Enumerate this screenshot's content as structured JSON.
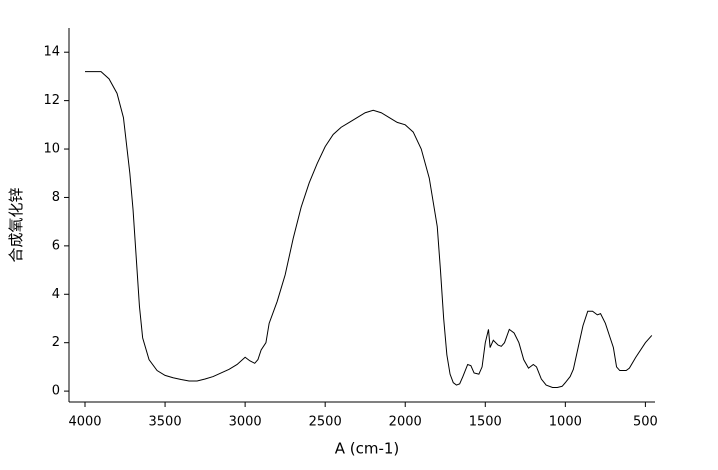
{
  "chart_data": {
    "type": "line",
    "x_label": "A (cm-1)",
    "y_label": "合成氧化锌",
    "x": [
      4000,
      3950,
      3900,
      3850,
      3800,
      3760,
      3720,
      3700,
      3680,
      3660,
      3640,
      3600,
      3550,
      3500,
      3450,
      3400,
      3350,
      3300,
      3250,
      3200,
      3150,
      3100,
      3050,
      3000,
      2970,
      2940,
      2920,
      2900,
      2870,
      2850,
      2800,
      2750,
      2700,
      2650,
      2600,
      2550,
      2500,
      2450,
      2400,
      2350,
      2300,
      2250,
      2200,
      2150,
      2100,
      2050,
      2000,
      1950,
      1900,
      1850,
      1800,
      1780,
      1760,
      1740,
      1720,
      1700,
      1680,
      1660,
      1640,
      1610,
      1590,
      1570,
      1540,
      1520,
      1500,
      1480,
      1470,
      1450,
      1420,
      1400,
      1380,
      1350,
      1320,
      1290,
      1260,
      1230,
      1200,
      1180,
      1150,
      1120,
      1080,
      1050,
      1020,
      1000,
      970,
      950,
      920,
      890,
      860,
      830,
      800,
      780,
      750,
      720,
      700,
      680,
      660,
      620,
      600,
      560,
      500,
      460
    ],
    "series": [
      {
        "name": "合成氧化锌",
        "color": "#000000",
        "values": [
          13.2,
          13.2,
          13.2,
          12.9,
          12.3,
          11.3,
          9,
          7.5,
          5.5,
          3.5,
          2.2,
          1.3,
          0.85,
          0.65,
          0.55,
          0.48,
          0.42,
          0.42,
          0.5,
          0.6,
          0.75,
          0.9,
          1.1,
          1.4,
          1.25,
          1.15,
          1.3,
          1.7,
          2.0,
          2.8,
          3.7,
          4.8,
          6.3,
          7.6,
          8.6,
          9.4,
          10.1,
          10.6,
          10.9,
          11.1,
          11.3,
          11.5,
          11.6,
          11.5,
          11.3,
          11.1,
          11.0,
          10.7,
          10.0,
          8.8,
          6.8,
          5.0,
          3.0,
          1.5,
          0.7,
          0.35,
          0.25,
          0.3,
          0.6,
          1.1,
          1.05,
          0.75,
          0.7,
          1.0,
          2.0,
          2.55,
          1.8,
          2.1,
          1.9,
          1.85,
          2.0,
          2.55,
          2.4,
          2.0,
          1.3,
          0.95,
          1.1,
          1.0,
          0.5,
          0.25,
          0.15,
          0.15,
          0.2,
          0.35,
          0.6,
          0.9,
          1.8,
          2.7,
          3.3,
          3.3,
          3.15,
          3.2,
          2.8,
          2.2,
          1.8,
          1.0,
          0.85,
          0.85,
          0.95,
          1.4,
          2.0,
          2.3
        ]
      }
    ],
    "xlim": [
      4100,
      440
    ],
    "ylim": [
      -0.45,
      15
    ],
    "xticks": [
      4000,
      3500,
      3000,
      2500,
      2000,
      1500,
      1000,
      500
    ],
    "yticks": [
      0,
      2,
      4,
      6,
      8,
      10,
      12,
      14
    ]
  }
}
